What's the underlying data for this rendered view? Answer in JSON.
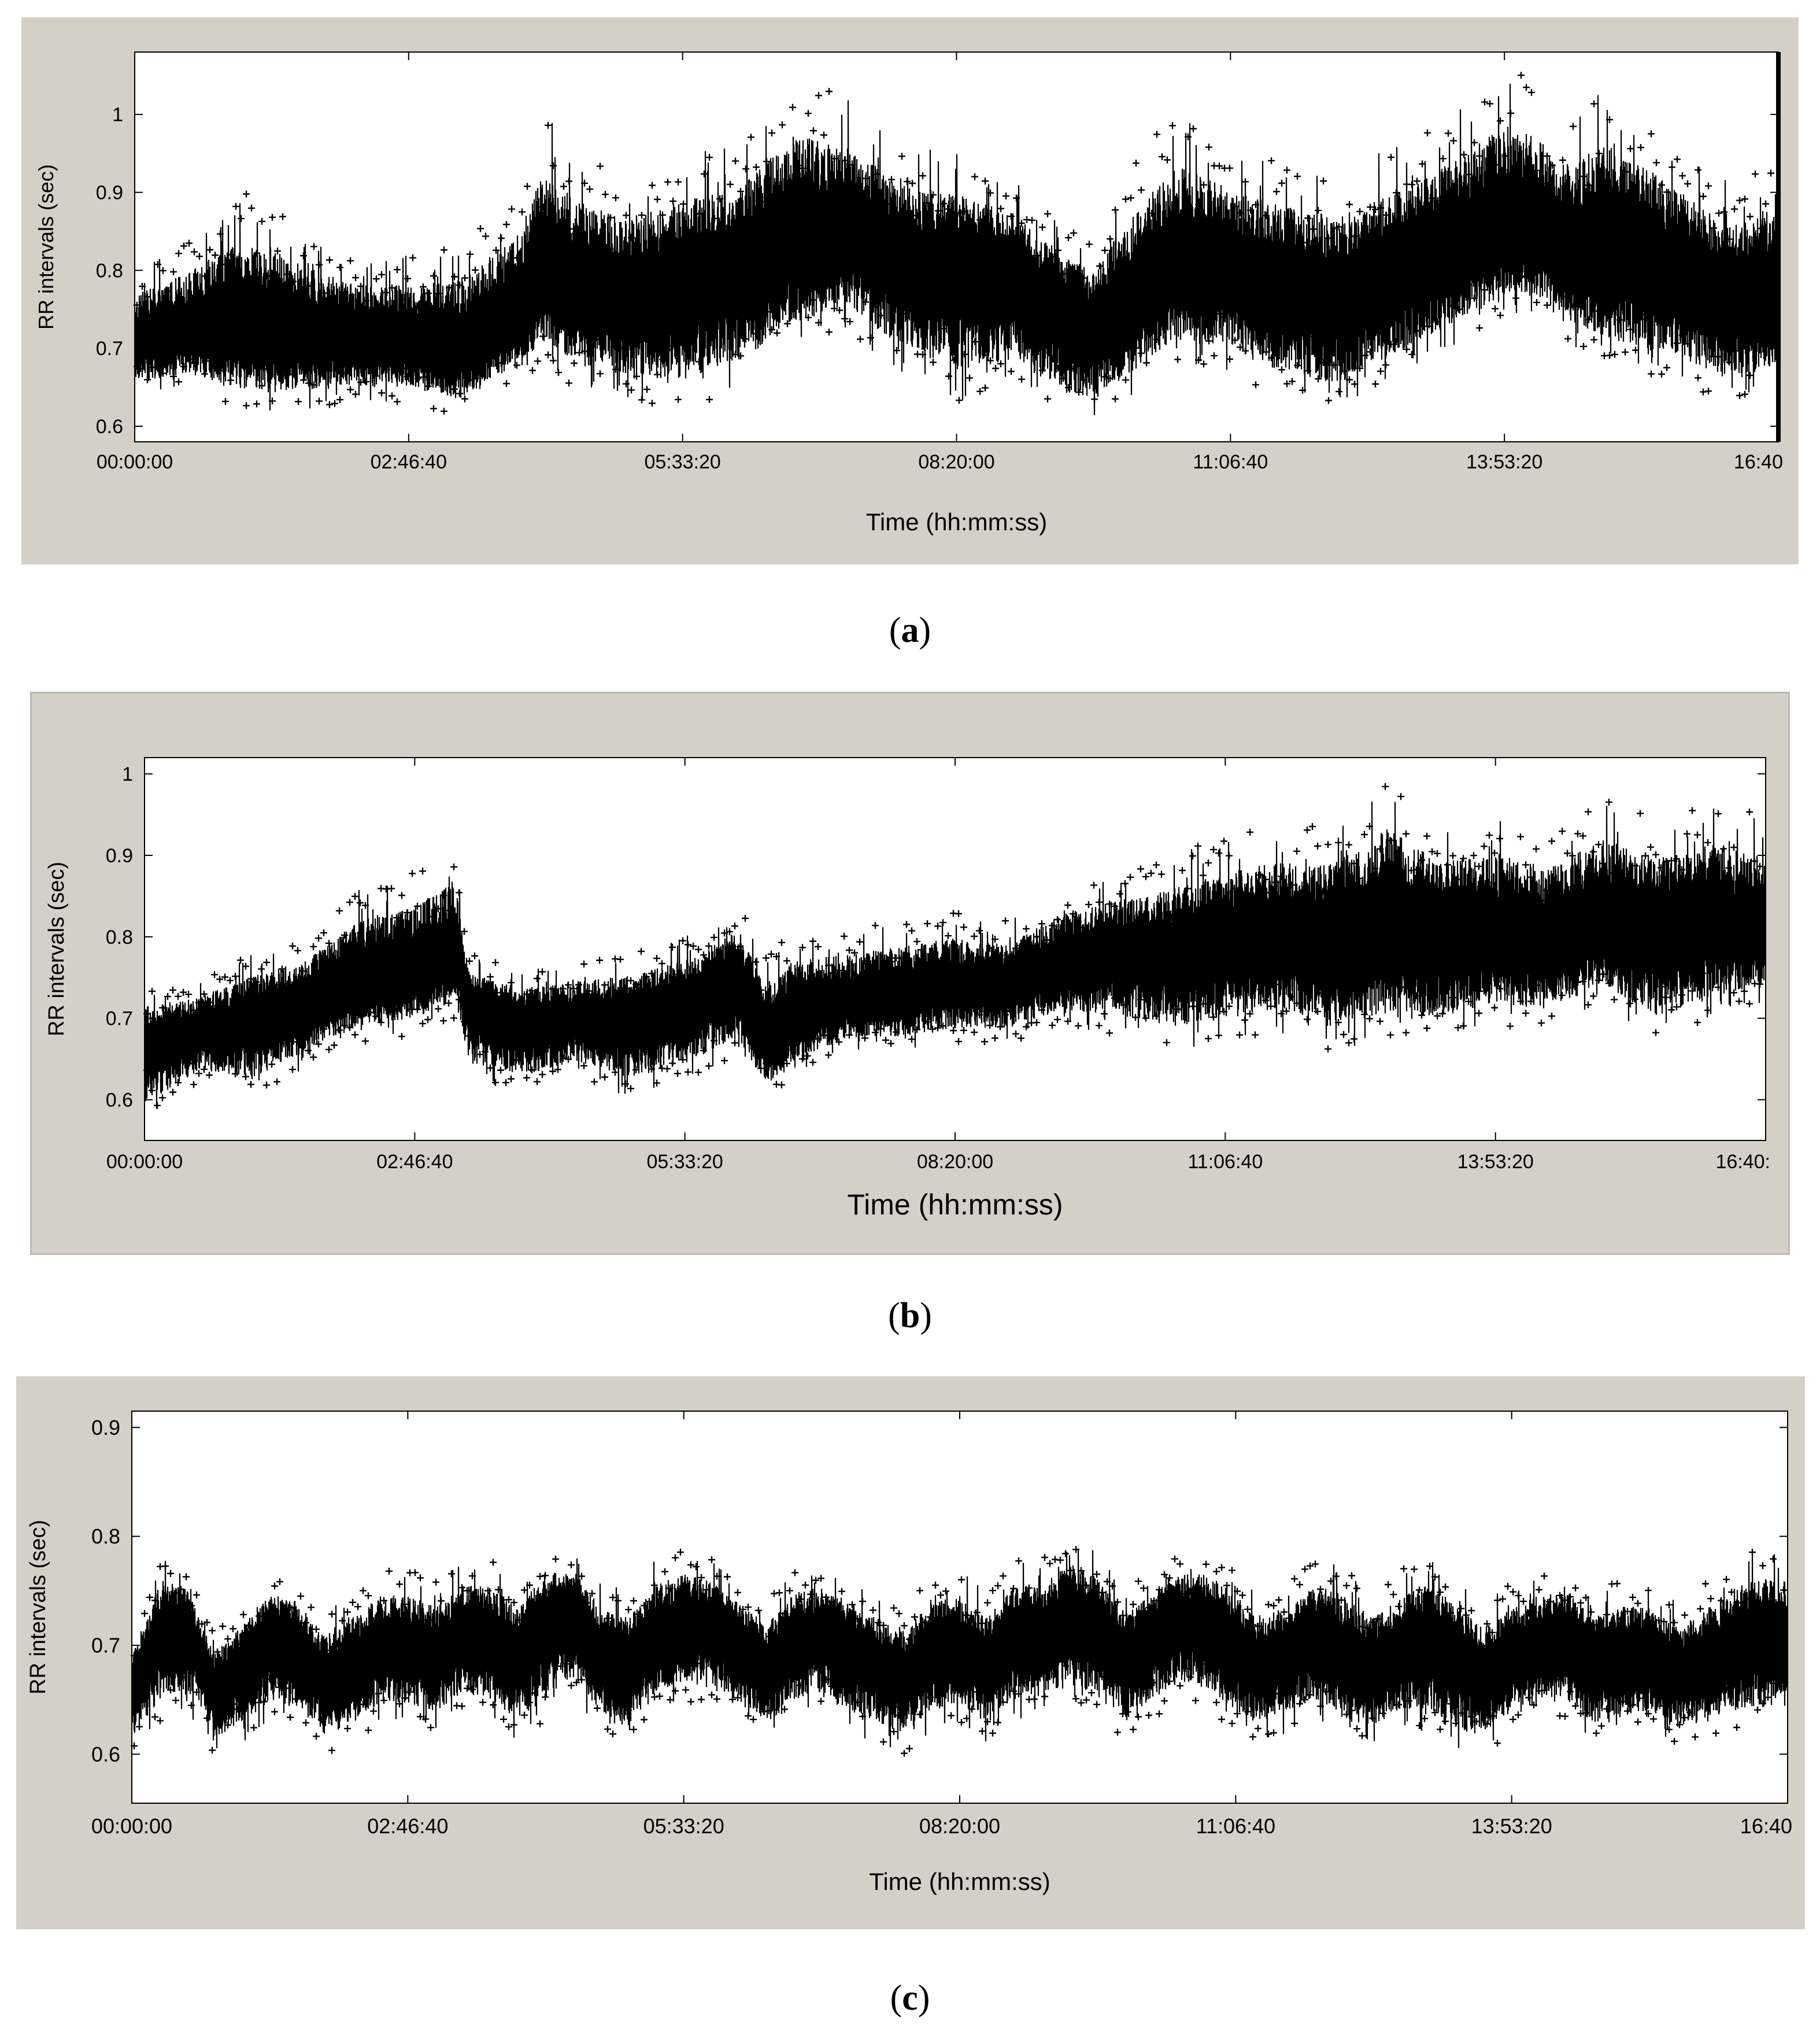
{
  "colors": {
    "panel_bg": "#d4d0c8",
    "plot_bg": "#ffffff",
    "trace": "#000000"
  },
  "chart_data": [
    {
      "type": "line",
      "marker": "plus",
      "caption_letter": "a",
      "xlabel": "Time (hh:mm:ss)",
      "ylabel": "RR intervals (sec)",
      "xlim": [
        0,
        60000
      ],
      "ylim": [
        0.58,
        1.08
      ],
      "xticks": [
        0,
        10000,
        20000,
        30000,
        40000,
        50000,
        60000
      ],
      "xtick_labels": [
        "00:00:00",
        "02:46:40",
        "05:33:20",
        "08:20:00",
        "11:06:40",
        "13:53:20",
        "16:40"
      ],
      "yticks": [
        0.6,
        0.7,
        0.8,
        0.9,
        1.0
      ],
      "ytick_labels": [
        "0.6",
        "0.7",
        "0.8",
        "0.9",
        "1"
      ],
      "grid": false,
      "series": [
        {
          "x": [
            0,
            2000,
            4000,
            6000,
            8000,
            10000,
            12000,
            14000,
            15000,
            16000,
            18000,
            20000,
            22000,
            24000,
            26000,
            28000,
            30000,
            32000,
            34000,
            35000,
            36000,
            38000,
            40000,
            42000,
            44000,
            46000,
            48000,
            50000,
            51000,
            52000,
            54000,
            56000,
            58000,
            60000
          ],
          "mid": [
            0.71,
            0.72,
            0.73,
            0.72,
            0.71,
            0.71,
            0.7,
            0.75,
            0.79,
            0.78,
            0.76,
            0.78,
            0.8,
            0.83,
            0.85,
            0.8,
            0.8,
            0.79,
            0.74,
            0.72,
            0.75,
            0.8,
            0.8,
            0.77,
            0.76,
            0.79,
            0.82,
            0.85,
            0.86,
            0.83,
            0.82,
            0.8,
            0.76,
            0.76
          ],
          "low": [
            0.64,
            0.65,
            0.62,
            0.62,
            0.63,
            0.63,
            0.61,
            0.66,
            0.68,
            0.65,
            0.63,
            0.62,
            0.64,
            0.7,
            0.72,
            0.67,
            0.63,
            0.65,
            0.61,
            0.61,
            0.63,
            0.68,
            0.67,
            0.63,
            0.62,
            0.66,
            0.7,
            0.74,
            0.74,
            0.71,
            0.67,
            0.66,
            0.63,
            0.65
          ],
          "high": [
            0.8,
            0.84,
            0.9,
            0.86,
            0.82,
            0.82,
            0.84,
            0.9,
            1.01,
            0.95,
            0.92,
            0.95,
            0.96,
            1.05,
            1.02,
            0.97,
            0.95,
            0.92,
            0.86,
            0.84,
            0.91,
            1.01,
            0.96,
            0.94,
            0.93,
            0.96,
            1.0,
            1.06,
            1.05,
            0.99,
            1.04,
            0.97,
            0.92,
            0.93
          ]
        }
      ]
    },
    {
      "type": "line",
      "marker": "plus",
      "caption_letter": "b",
      "xlabel": "Time (hh:mm:ss)",
      "ylabel": "RR intervals (sec)",
      "xlim": [
        0,
        60000
      ],
      "ylim": [
        0.55,
        1.02
      ],
      "xticks": [
        0,
        10000,
        20000,
        30000,
        40000,
        50000,
        60000
      ],
      "xtick_labels": [
        "00:00:00",
        "02:46:40",
        "05:33:20",
        "08:20:00",
        "11:06:40",
        "13:53:20",
        "16:40:"
      ],
      "yticks": [
        0.6,
        0.7,
        0.8,
        0.9,
        1.0
      ],
      "ytick_labels": [
        "0.6",
        "0.7",
        "0.8",
        "0.9",
        "1"
      ],
      "grid": false,
      "series": [
        {
          "x": [
            0,
            2000,
            4000,
            6000,
            8000,
            10000,
            11500,
            12000,
            14000,
            16000,
            18000,
            20000,
            22000,
            23000,
            24000,
            26000,
            28000,
            30000,
            32000,
            34000,
            36000,
            38000,
            40000,
            42000,
            44000,
            46000,
            48000,
            50000,
            52000,
            54000,
            56000,
            58000,
            60000
          ],
          "mid": [
            0.67,
            0.68,
            0.7,
            0.72,
            0.75,
            0.76,
            0.79,
            0.72,
            0.69,
            0.7,
            0.7,
            0.72,
            0.75,
            0.67,
            0.7,
            0.72,
            0.73,
            0.74,
            0.74,
            0.77,
            0.78,
            0.78,
            0.79,
            0.8,
            0.8,
            0.81,
            0.8,
            0.8,
            0.8,
            0.81,
            0.82,
            0.81,
            0.8
          ],
          "low": [
            0.57,
            0.62,
            0.6,
            0.64,
            0.67,
            0.68,
            0.7,
            0.62,
            0.61,
            0.63,
            0.6,
            0.62,
            0.65,
            0.6,
            0.63,
            0.66,
            0.66,
            0.67,
            0.67,
            0.69,
            0.68,
            0.66,
            0.67,
            0.68,
            0.66,
            0.67,
            0.67,
            0.69,
            0.68,
            0.72,
            0.66,
            0.7,
            0.72
          ],
          "high": [
            0.74,
            0.75,
            0.78,
            0.8,
            0.86,
            0.88,
            0.91,
            0.78,
            0.76,
            0.77,
            0.78,
            0.8,
            0.84,
            0.78,
            0.81,
            0.81,
            0.82,
            0.83,
            0.82,
            0.86,
            0.88,
            0.9,
            0.93,
            0.94,
            0.94,
            1.0,
            0.94,
            0.96,
            0.93,
            0.98,
            0.94,
            0.97,
            0.95
          ]
        }
      ]
    },
    {
      "type": "line",
      "marker": "plus",
      "caption_letter": "c",
      "xlabel": "Time (hh:mm:ss)",
      "ylabel": "RR intervals (sec)",
      "xlim": [
        0,
        60000
      ],
      "ylim": [
        0.555,
        0.915
      ],
      "xticks": [
        0,
        10000,
        20000,
        30000,
        40000,
        50000,
        60000
      ],
      "xtick_labels": [
        "00:00:00",
        "02:46:40",
        "05:33:20",
        "08:20:00",
        "11:06:40",
        "13:53:20",
        "16:40"
      ],
      "yticks": [
        0.6,
        0.7,
        0.8,
        0.9
      ],
      "ytick_labels": [
        "0.6",
        "0.7",
        "0.8",
        "0.9"
      ],
      "grid": false,
      "series": [
        {
          "x": [
            0,
            1000,
            2000,
            3000,
            4000,
            5000,
            6000,
            7000,
            8000,
            9000,
            10000,
            11000,
            12000,
            13000,
            14000,
            15000,
            16000,
            17000,
            18000,
            19000,
            20000,
            21000,
            22000,
            23000,
            24000,
            25000,
            26000,
            27000,
            28000,
            29000,
            30000,
            31000,
            32000,
            33000,
            34000,
            35000,
            36000,
            37000,
            38000,
            39000,
            40000,
            41000,
            42000,
            43000,
            44000,
            45000,
            46000,
            47000,
            48000,
            49000,
            50000,
            51000,
            52000,
            53000,
            54000,
            55000,
            56000,
            57000,
            58000,
            59000,
            60000
          ],
          "mid": [
            0.66,
            0.71,
            0.72,
            0.66,
            0.68,
            0.71,
            0.7,
            0.67,
            0.68,
            0.7,
            0.7,
            0.69,
            0.71,
            0.71,
            0.69,
            0.72,
            0.73,
            0.69,
            0.68,
            0.71,
            0.72,
            0.72,
            0.7,
            0.68,
            0.71,
            0.71,
            0.7,
            0.68,
            0.67,
            0.7,
            0.7,
            0.68,
            0.71,
            0.71,
            0.73,
            0.72,
            0.69,
            0.71,
            0.72,
            0.72,
            0.7,
            0.68,
            0.7,
            0.71,
            0.69,
            0.68,
            0.7,
            0.71,
            0.69,
            0.67,
            0.69,
            0.7,
            0.71,
            0.68,
            0.69,
            0.69,
            0.67,
            0.68,
            0.7,
            0.71,
            0.7
          ],
          "low": [
            0.6,
            0.63,
            0.64,
            0.6,
            0.61,
            0.63,
            0.62,
            0.6,
            0.61,
            0.63,
            0.63,
            0.62,
            0.64,
            0.63,
            0.61,
            0.63,
            0.65,
            0.62,
            0.61,
            0.64,
            0.65,
            0.64,
            0.63,
            0.61,
            0.63,
            0.64,
            0.62,
            0.61,
            0.6,
            0.62,
            0.63,
            0.61,
            0.63,
            0.64,
            0.64,
            0.63,
            0.61,
            0.63,
            0.65,
            0.64,
            0.62,
            0.61,
            0.62,
            0.63,
            0.61,
            0.61,
            0.62,
            0.62,
            0.6,
            0.6,
            0.62,
            0.63,
            0.63,
            0.61,
            0.62,
            0.62,
            0.61,
            0.61,
            0.62,
            0.62,
            0.63
          ],
          "high": [
            0.71,
            0.78,
            0.77,
            0.71,
            0.74,
            0.77,
            0.76,
            0.73,
            0.75,
            0.77,
            0.77,
            0.76,
            0.78,
            0.78,
            0.76,
            0.79,
            0.79,
            0.76,
            0.75,
            0.78,
            0.79,
            0.78,
            0.76,
            0.74,
            0.77,
            0.77,
            0.76,
            0.75,
            0.74,
            0.76,
            0.77,
            0.75,
            0.78,
            0.78,
            0.8,
            0.79,
            0.75,
            0.77,
            0.79,
            0.79,
            0.77,
            0.75,
            0.76,
            0.78,
            0.77,
            0.75,
            0.77,
            0.78,
            0.76,
            0.74,
            0.76,
            0.77,
            0.77,
            0.75,
            0.76,
            0.76,
            0.74,
            0.76,
            0.78,
            0.79,
            0.79
          ]
        }
      ]
    }
  ]
}
